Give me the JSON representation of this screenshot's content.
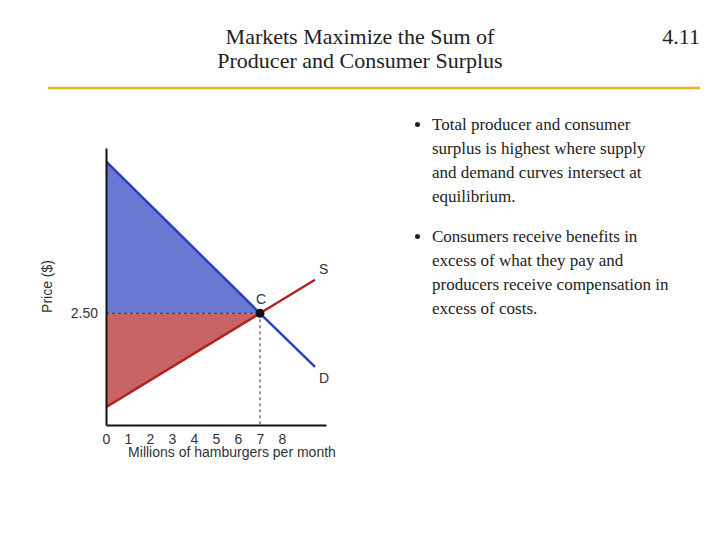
{
  "slide_number": "4.11",
  "bullets": [
    "Total producer and consumer surplus is highest where supply and demand curves intersect at equilibrium.",
    "Consumers receive benefits in excess of what they pay and producers receive compensation in excess of costs."
  ],
  "chart_data": {
    "type": "line",
    "title": "Markets Maximize the Sum of Producer and Consumer Surplus",
    "x_label": "Millions of hamburgers per month",
    "y_label": "Price ($)",
    "xlim": [
      0,
      10
    ],
    "xticks": [
      0,
      1,
      2,
      3,
      4,
      5,
      6,
      7,
      8
    ],
    "ylim": [
      0,
      6.2
    ],
    "yticks": [
      {
        "value": 2.5,
        "label": "2.50"
      }
    ],
    "grid": false,
    "series": [
      {
        "name": "D",
        "color": "#2c3fbd",
        "x": [
          0,
          7,
          9.5
        ],
        "values": [
          5.9,
          2.5,
          1.3
        ]
      },
      {
        "name": "S",
        "color": "#b22222",
        "x": [
          0,
          7,
          9.5
        ],
        "values": [
          0.4,
          2.5,
          3.25
        ]
      }
    ],
    "equilibrium": {
      "label": "C",
      "x": 7,
      "y": 2.5
    }
  }
}
